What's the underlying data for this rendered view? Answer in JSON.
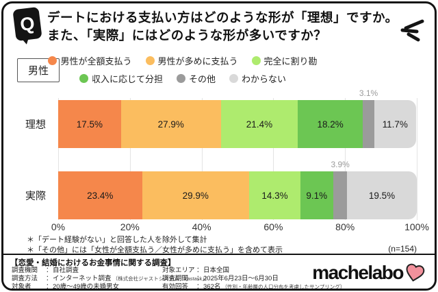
{
  "header": {
    "q_icon": "Q",
    "title_line1": "デートにおける支払い方はどのような形が「理想」ですか。",
    "title_line2": "また、「実際」にはどのような形が多いですか？"
  },
  "gender_label": "男性",
  "chart_data": {
    "type": "bar",
    "stacked": true,
    "orientation": "horizontal",
    "title": "デートにおける支払い方はどのような形が「理想」ですか。また、「実際」にはどのような形が多いですか？",
    "group_label": "男性",
    "categories": [
      "男性が全額支払う",
      "男性が多めに支払う",
      "完全に割り勘",
      "収入に応じて分担",
      "その他",
      "わからない"
    ],
    "category_colors": [
      "#f5874b",
      "#fbbd5f",
      "#aeeb6e",
      "#6cc653",
      "#9b9b9b",
      "#d9d9d9"
    ],
    "series": [
      {
        "name": "理想",
        "values": [
          17.5,
          27.9,
          21.4,
          18.2,
          3.1,
          11.7
        ]
      },
      {
        "name": "実際",
        "values": [
          23.4,
          29.9,
          14.3,
          9.1,
          3.9,
          19.5
        ]
      }
    ],
    "value_suffix": "%",
    "xlim": [
      0,
      100
    ],
    "x_ticks": [
      "0%",
      "20%",
      "40%",
      "60%",
      "80%",
      "100%"
    ],
    "grid": true,
    "legend_position": "top",
    "outside_label_threshold": 5,
    "sample_size": 154
  },
  "footnotes": {
    "line1": "＊「デート経験がない」と回答した人を除外して集計",
    "line2": "＊「その他」には「女性が全額支払う／女性が多めに支払う」を含めて表示",
    "sample_size": "(n=154)"
  },
  "info_panel": {
    "title": "【恋愛・結婚におけるお金事情に関する調査】",
    "colon": "：",
    "left_rows": [
      {
        "label": "調査機関",
        "value": "自社調査",
        "note": ""
      },
      {
        "label": "調査方法",
        "value": "インターネット調査",
        "note": "（株式会社ジャストシステム「Fastask」）"
      },
      {
        "label": "対象者",
        "value": "20歳〜49歳の未婚男女",
        "note": ""
      }
    ],
    "right_rows": [
      {
        "label": "対象エリア",
        "value": "日本全国",
        "note": ""
      },
      {
        "label": "調査期間",
        "value": "2025年6月23日〜6月30日",
        "note": ""
      },
      {
        "label": "有効回答",
        "value": "362名",
        "note": "（性別・年齢層の人口分布を考慮したサンプリング）"
      }
    ],
    "logo_text": "machelabo",
    "heart_color": "#f2919c"
  }
}
